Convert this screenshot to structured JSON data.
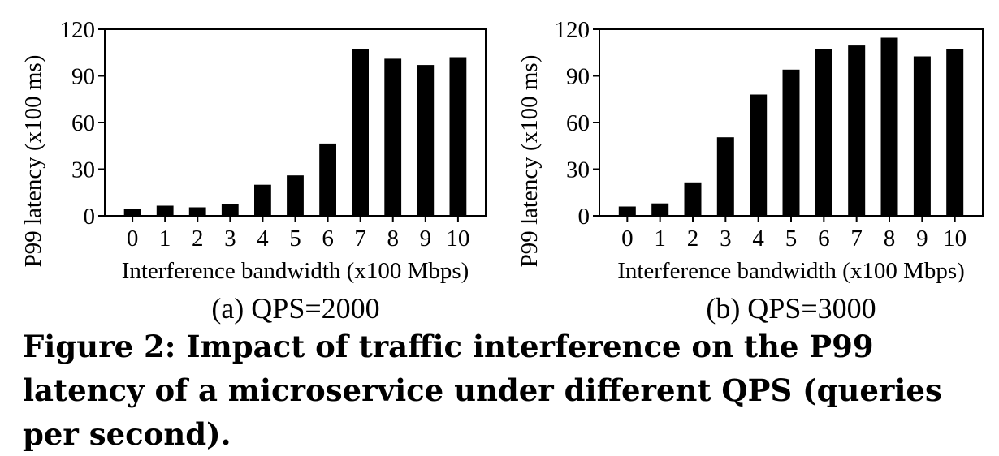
{
  "charts": [
    {
      "subcaption": "(a) QPS=2000",
      "xlabel": "Interference bandwidth (x100 Mbps)",
      "ylabel": "P99 latency (x100 ms)",
      "chart_key": 0
    },
    {
      "subcaption": "(b) QPS=3000",
      "xlabel": "Interference bandwidth (x100 Mbps)",
      "ylabel": "P99 latency (x100 ms)",
      "chart_key": 1
    }
  ],
  "caption": "Figure 2: Impact of traffic interference on the P99 latency of a microservice under different QPS (queries per second).",
  "chart_data": [
    {
      "type": "bar",
      "categories": [
        "0",
        "1",
        "2",
        "3",
        "4",
        "5",
        "6",
        "7",
        "8",
        "9",
        "10"
      ],
      "values": [
        4.5,
        6.5,
        5.5,
        7.5,
        20,
        26,
        46.5,
        107,
        101,
        97,
        102
      ],
      "xlabel": "Interference bandwidth (x100 Mbps)",
      "ylabel": "P99 latency (x100 ms)",
      "ylim": [
        0,
        120
      ],
      "yticks": [
        0,
        30,
        60,
        90,
        120
      ],
      "bar_color": "#000000",
      "grid": false
    },
    {
      "type": "bar",
      "categories": [
        "0",
        "1",
        "2",
        "3",
        "4",
        "5",
        "6",
        "7",
        "8",
        "9",
        "10"
      ],
      "values": [
        6,
        8,
        21.5,
        50.5,
        78,
        94,
        107.5,
        109.5,
        114.5,
        102.5,
        107.5
      ],
      "xlabel": "Interference bandwidth (x100 Mbps)",
      "ylabel": "P99 latency (x100 ms)",
      "ylim": [
        0,
        120
      ],
      "yticks": [
        0,
        30,
        60,
        90,
        120
      ],
      "bar_color": "#000000",
      "grid": false
    }
  ]
}
